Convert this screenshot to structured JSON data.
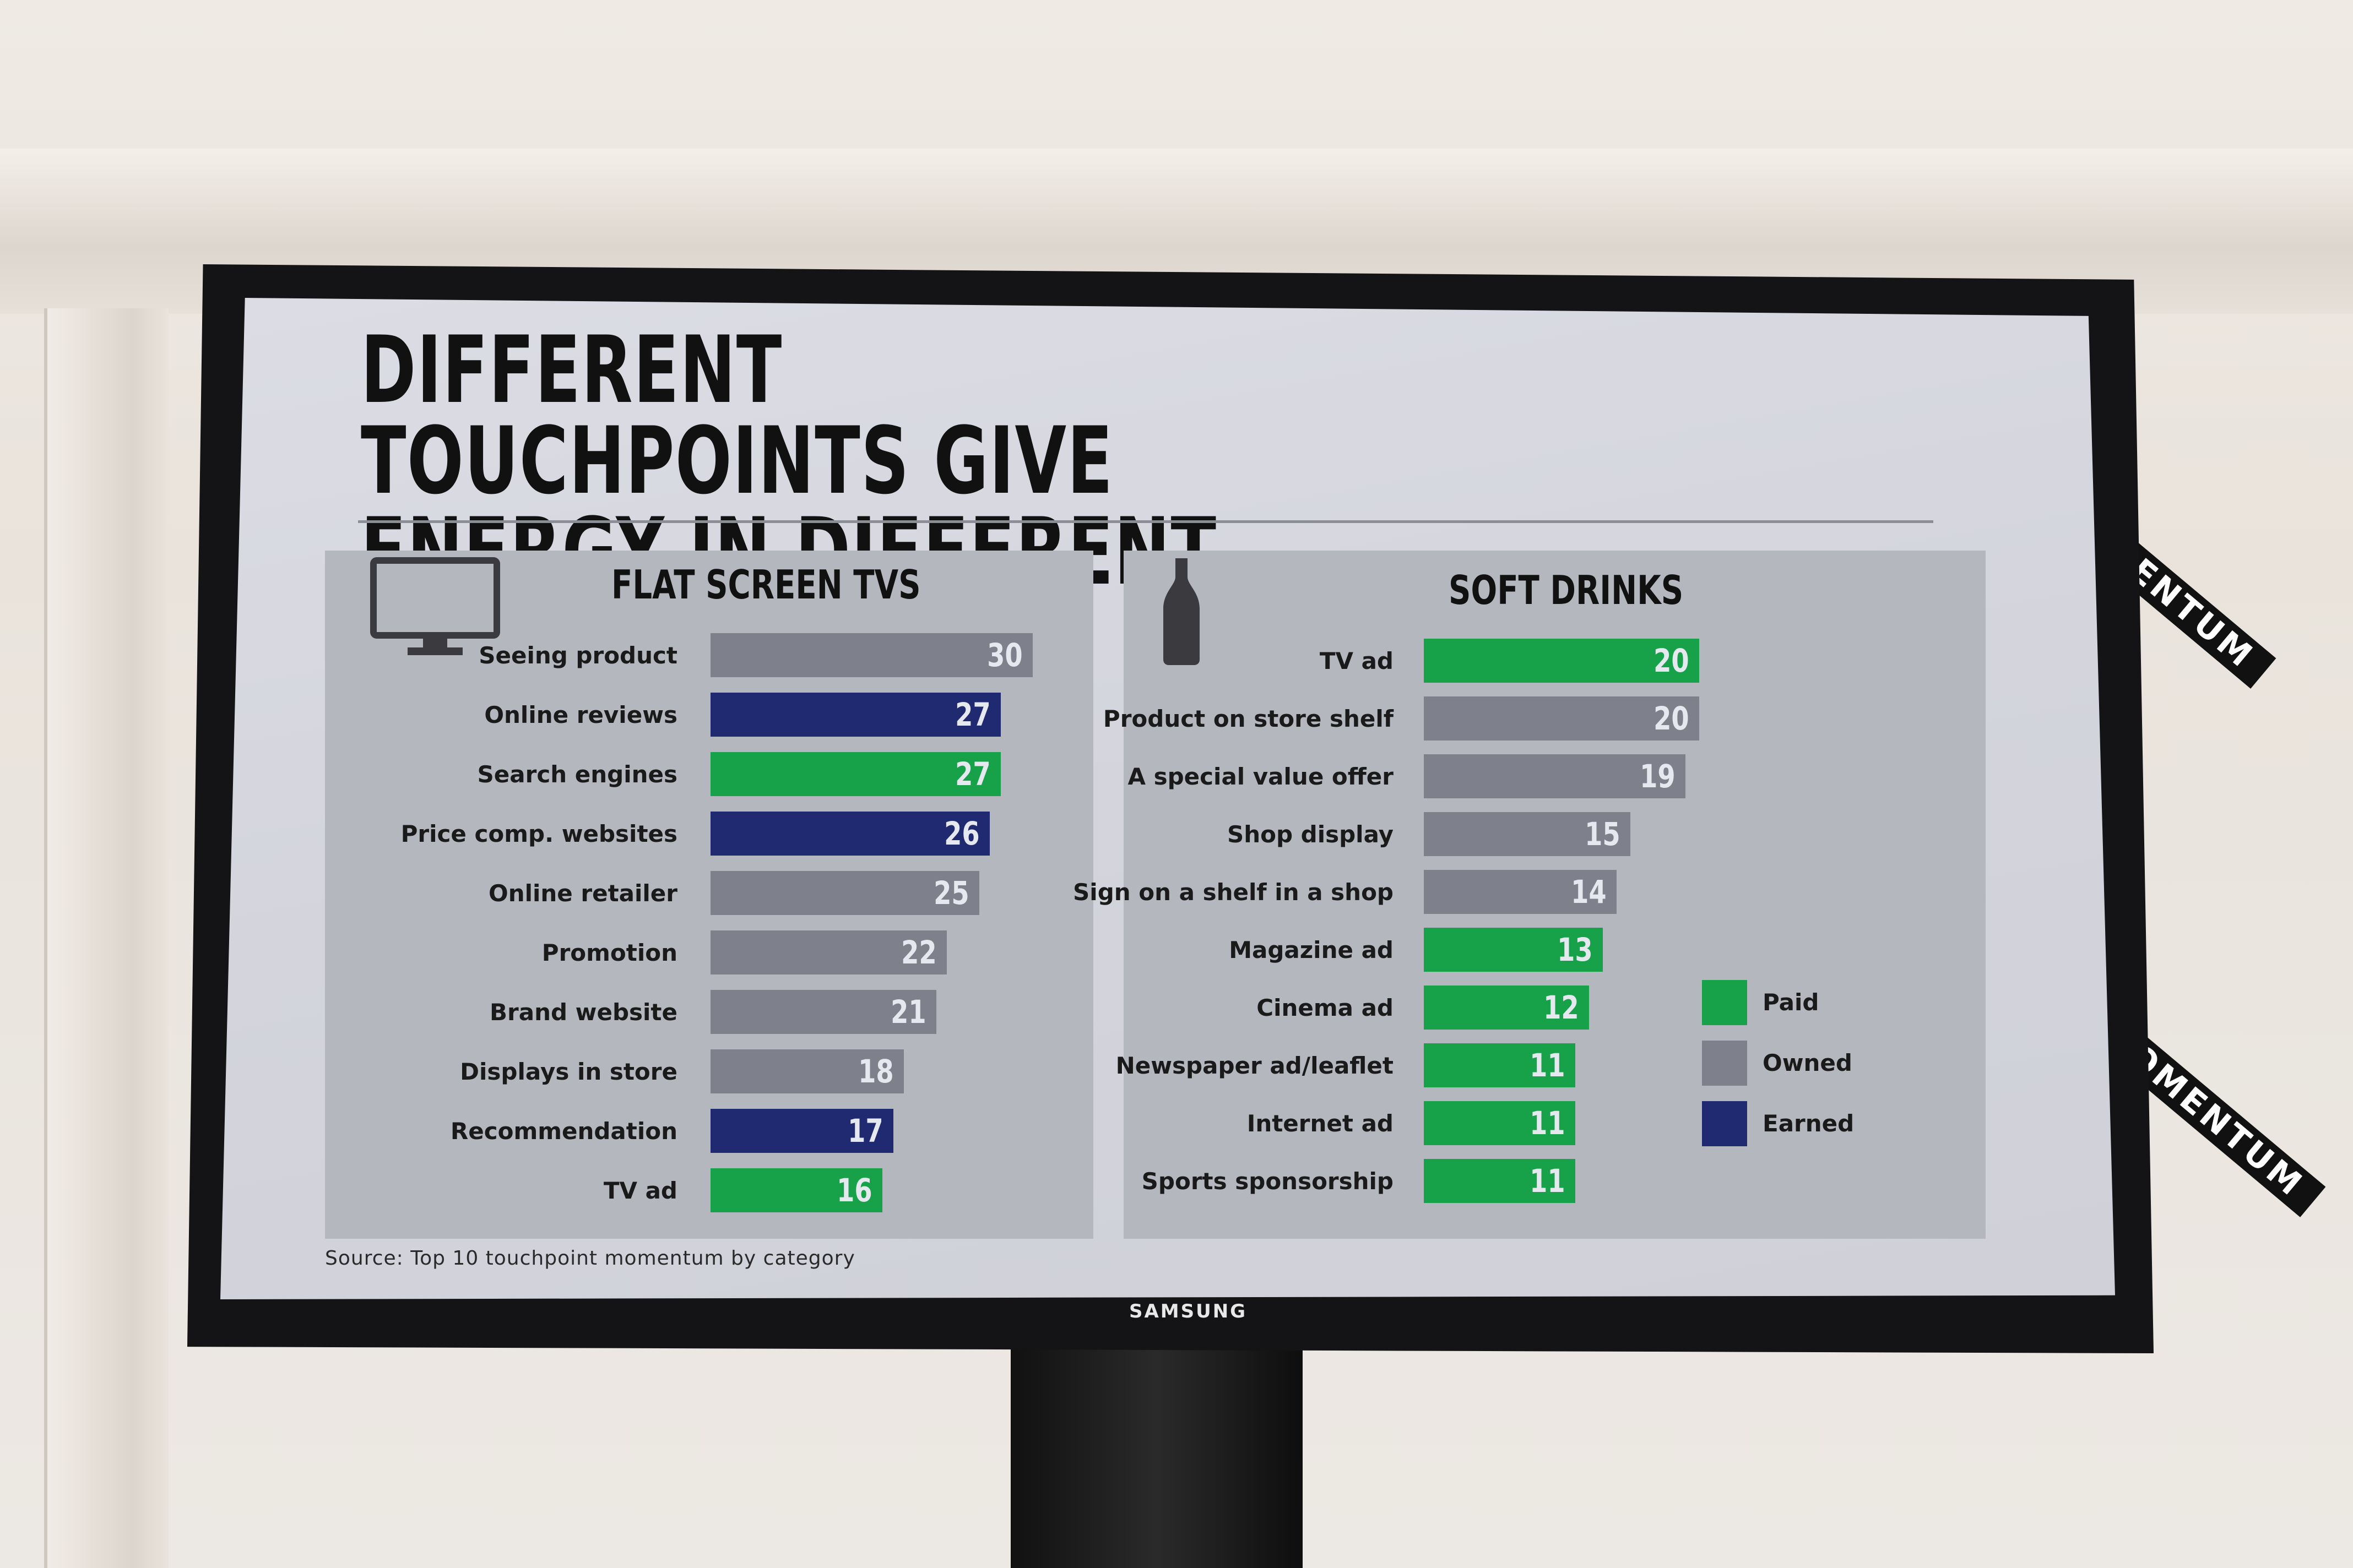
{
  "colors": {
    "paid": "#17a24a",
    "owned": "#7e818c",
    "earned": "#1f2a70"
  },
  "slide": {
    "title_line1": "DIFFERENT TOUCHPOINTS GIVE",
    "title_line2": "ENERGY IN DIFFERENT CATEGORIES",
    "source": "Source: Top 10 touchpoint momentum by category"
  },
  "tv_brand": "SAMSUNG",
  "banners": [
    "OMENTUM",
    "OMENTUM"
  ],
  "legend": [
    {
      "label": "Paid",
      "type": "paid"
    },
    {
      "label": "Owned",
      "type": "owned"
    },
    {
      "label": "Earned",
      "type": "earned"
    }
  ],
  "chart_data": [
    {
      "type": "bar",
      "title": "FLAT SCREEN TVS",
      "icon": "tv-icon",
      "categories": [
        "Seeing product",
        "Online reviews",
        "Search engines",
        "Price comp. websites",
        "Online retailer",
        "Promotion",
        "Brand website",
        "Displays in store",
        "Recommendation",
        "TV ad"
      ],
      "values": [
        30,
        27,
        27,
        26,
        25,
        22,
        21,
        18,
        17,
        16
      ],
      "types": [
        "owned",
        "earned",
        "paid",
        "earned",
        "owned",
        "owned",
        "owned",
        "owned",
        "earned",
        "paid"
      ]
    },
    {
      "type": "bar",
      "title": "SOFT DRINKS",
      "icon": "bottle-icon",
      "categories": [
        "TV ad",
        "Product on store shelf",
        "A special value offer",
        "Shop display",
        "Sign on a shelf in a shop",
        "Magazine ad",
        "Cinema ad",
        "Newspaper ad/leaflet",
        "Internet ad",
        "Sports sponsorship"
      ],
      "values": [
        20,
        20,
        19,
        15,
        14,
        13,
        12,
        11,
        11,
        11
      ],
      "types": [
        "paid",
        "owned",
        "owned",
        "owned",
        "owned",
        "paid",
        "paid",
        "paid",
        "paid",
        "paid"
      ]
    }
  ]
}
